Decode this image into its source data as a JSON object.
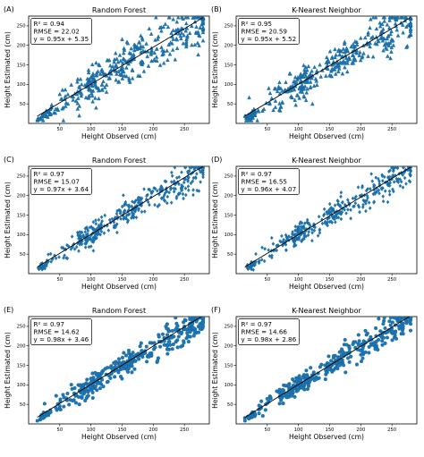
{
  "figure": {
    "marker_color": "#1f77b4",
    "marker_edge_color": "#0b5a8f",
    "line_color": "#000000",
    "y_axis_label": "Height Estimated (cm)",
    "x_axis_label": "Height Observed (cm)"
  },
  "chart_data": [
    {
      "panel": "(A)",
      "title": "Random Forest",
      "type": "scatter",
      "marker": "triangle",
      "xlabel": "Height Observed (cm)",
      "ylabel": "Height Estimated (cm)",
      "xlim": [
        0,
        290
      ],
      "ylim": [
        0,
        275
      ],
      "xticks": [
        "50",
        "100",
        "150",
        "200",
        "250"
      ],
      "yticks": [
        "50",
        "100",
        "150",
        "200",
        "250"
      ],
      "grid": false,
      "stats": [
        "R² = 0.94",
        "RMSE = 22.02",
        "y = 0.95x + 5.35"
      ],
      "fit": {
        "slope": 0.95,
        "intercept": 5.35
      },
      "scatter_spread": {
        "low_x": 6,
        "mid_x": 18,
        "high_x": 30,
        "low_y": 5,
        "mid_y": 22,
        "high_y": 32
      },
      "clusters": [
        {
          "x": 25,
          "y": 22,
          "n": 35
        },
        {
          "x": 55,
          "y": 55,
          "n": 22
        },
        {
          "x": 100,
          "y": 100,
          "n": 110
        },
        {
          "x": 160,
          "y": 160,
          "n": 80
        },
        {
          "x": 215,
          "y": 205,
          "n": 60
        },
        {
          "x": 262,
          "y": 245,
          "n": 90
        }
      ]
    },
    {
      "panel": "(B)",
      "title": "K-Nearest Neighbor",
      "type": "scatter",
      "marker": "triangle",
      "xlabel": "Height Observed (cm)",
      "ylabel": "Height Estimated (cm)",
      "xlim": [
        0,
        290
      ],
      "ylim": [
        0,
        275
      ],
      "xticks": [
        "50",
        "100",
        "150",
        "200",
        "250"
      ],
      "yticks": [
        "50",
        "100",
        "150",
        "200",
        "250"
      ],
      "grid": false,
      "stats": [
        "R² = 0.95",
        "RMSE = 20.59",
        "y = 0.95x + 5.52"
      ],
      "fit": {
        "slope": 0.95,
        "intercept": 5.52
      },
      "scatter_spread": {
        "low_x": 6,
        "mid_x": 18,
        "high_x": 30,
        "low_y": 5,
        "mid_y": 20,
        "high_y": 30
      },
      "clusters": [
        {
          "x": 25,
          "y": 22,
          "n": 35
        },
        {
          "x": 55,
          "y": 55,
          "n": 22
        },
        {
          "x": 100,
          "y": 100,
          "n": 110
        },
        {
          "x": 160,
          "y": 160,
          "n": 80
        },
        {
          "x": 215,
          "y": 205,
          "n": 60
        },
        {
          "x": 262,
          "y": 245,
          "n": 90
        }
      ]
    },
    {
      "panel": "(C)",
      "title": "Random Forest",
      "type": "scatter",
      "marker": "diamond",
      "xlabel": "Height Observed (cm)",
      "ylabel": "Height Estimated (cm)",
      "xlim": [
        0,
        290
      ],
      "ylim": [
        0,
        275
      ],
      "xticks": [
        "50",
        "100",
        "150",
        "200",
        "250"
      ],
      "yticks": [
        "50",
        "100",
        "150",
        "200",
        "250"
      ],
      "grid": false,
      "stats": [
        "R² = 0.97",
        "RMSE = 15.07",
        "y = 0.97x + 3.64"
      ],
      "fit": {
        "slope": 0.97,
        "intercept": 3.64
      },
      "scatter_spread": {
        "low_x": 5,
        "mid_x": 15,
        "high_x": 22,
        "low_y": 4,
        "mid_y": 14,
        "high_y": 22
      },
      "clusters": [
        {
          "x": 25,
          "y": 22,
          "n": 35
        },
        {
          "x": 55,
          "y": 55,
          "n": 22
        },
        {
          "x": 100,
          "y": 100,
          "n": 110
        },
        {
          "x": 160,
          "y": 160,
          "n": 80
        },
        {
          "x": 215,
          "y": 210,
          "n": 60
        },
        {
          "x": 262,
          "y": 250,
          "n": 90
        }
      ]
    },
    {
      "panel": "(D)",
      "title": "K-Nearest Neighbor",
      "type": "scatter",
      "marker": "diamond",
      "xlabel": "Height Observed (cm)",
      "ylabel": "Height Estimated (cm)",
      "xlim": [
        0,
        290
      ],
      "ylim": [
        0,
        275
      ],
      "xticks": [
        "50",
        "100",
        "150",
        "200",
        "250"
      ],
      "yticks": [
        "50",
        "100",
        "150",
        "200",
        "250"
      ],
      "grid": false,
      "stats": [
        "R² = 0.97",
        "RMSE = 16.55",
        "y = 0.96x + 4.07"
      ],
      "fit": {
        "slope": 0.96,
        "intercept": 4.07
      },
      "scatter_spread": {
        "low_x": 5,
        "mid_x": 15,
        "high_x": 22,
        "low_y": 4,
        "mid_y": 15,
        "high_y": 22
      },
      "clusters": [
        {
          "x": 25,
          "y": 22,
          "n": 35
        },
        {
          "x": 55,
          "y": 55,
          "n": 22
        },
        {
          "x": 100,
          "y": 100,
          "n": 110
        },
        {
          "x": 160,
          "y": 160,
          "n": 80
        },
        {
          "x": 215,
          "y": 210,
          "n": 60
        },
        {
          "x": 262,
          "y": 250,
          "n": 90
        }
      ]
    },
    {
      "panel": "(E)",
      "title": "Random Forest",
      "type": "scatter",
      "marker": "circle",
      "xlabel": "Height Observed (cm)",
      "ylabel": "Height Estimated (cm)",
      "xlim": [
        0,
        290
      ],
      "ylim": [
        0,
        275
      ],
      "xticks": [
        "50",
        "100",
        "150",
        "200",
        "250"
      ],
      "yticks": [
        "50",
        "100",
        "150",
        "200",
        "250"
      ],
      "grid": false,
      "stats": [
        "R² = 0.97",
        "RMSE = 14.62",
        "y = 0.98x + 3.46"
      ],
      "fit": {
        "slope": 0.98,
        "intercept": 3.46
      },
      "scatter_spread": {
        "low_x": 5,
        "mid_x": 14,
        "high_x": 20,
        "low_y": 4,
        "mid_y": 13,
        "high_y": 20
      },
      "clusters": [
        {
          "x": 25,
          "y": 22,
          "n": 35
        },
        {
          "x": 55,
          "y": 55,
          "n": 22
        },
        {
          "x": 100,
          "y": 100,
          "n": 110
        },
        {
          "x": 160,
          "y": 160,
          "n": 80
        },
        {
          "x": 215,
          "y": 212,
          "n": 60
        },
        {
          "x": 262,
          "y": 252,
          "n": 90
        }
      ]
    },
    {
      "panel": "(F)",
      "title": "K-Nearest Neighbor",
      "type": "scatter",
      "marker": "circle",
      "xlabel": "Height Observed (cm)",
      "ylabel": "Height Estimated (cm)",
      "xlim": [
        0,
        290
      ],
      "ylim": [
        0,
        275
      ],
      "xticks": [
        "50",
        "100",
        "150",
        "200",
        "250"
      ],
      "yticks": [
        "50",
        "100",
        "150",
        "200",
        "250"
      ],
      "grid": false,
      "stats": [
        "R² = 0.97",
        "RMSE = 14.66",
        "y = 0.98x + 2.86"
      ],
      "fit": {
        "slope": 0.98,
        "intercept": 2.86
      },
      "scatter_spread": {
        "low_x": 5,
        "mid_x": 14,
        "high_x": 20,
        "low_y": 4,
        "mid_y": 13,
        "high_y": 20
      },
      "clusters": [
        {
          "x": 25,
          "y": 22,
          "n": 35
        },
        {
          "x": 55,
          "y": 55,
          "n": 22
        },
        {
          "x": 100,
          "y": 100,
          "n": 110
        },
        {
          "x": 160,
          "y": 160,
          "n": 80
        },
        {
          "x": 215,
          "y": 212,
          "n": 60
        },
        {
          "x": 262,
          "y": 252,
          "n": 90
        }
      ]
    }
  ]
}
